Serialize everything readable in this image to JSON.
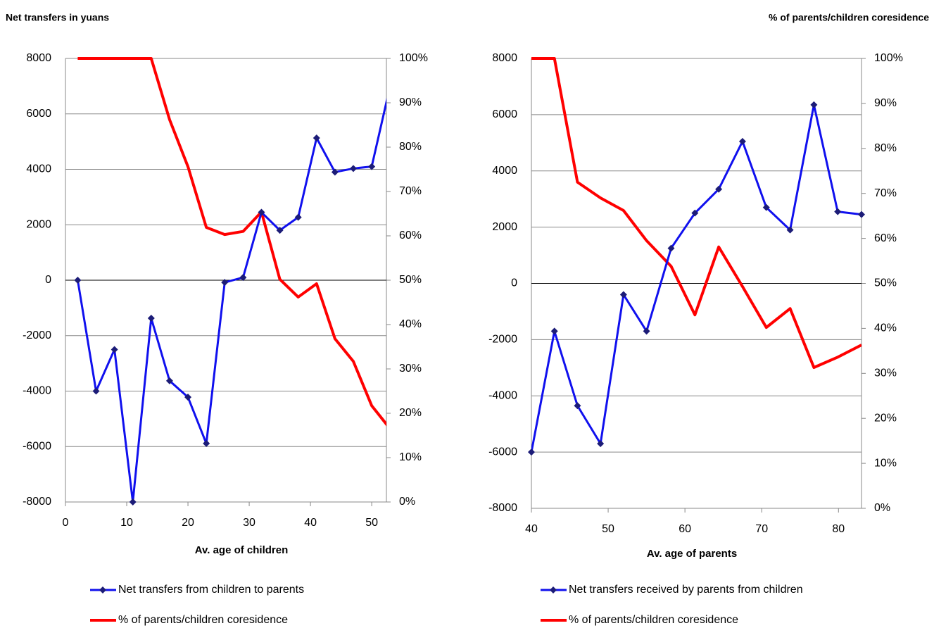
{
  "chart_data": [
    {
      "type": "line",
      "ylabel": "Net transfers in yuans",
      "xlabel": "Av. age of children",
      "x": [
        2,
        5,
        8,
        11,
        14,
        17,
        20,
        23,
        26,
        29,
        32,
        35,
        38,
        41,
        44,
        47,
        50,
        53
      ],
      "xlim": [
        0,
        52.4
      ],
      "xticks": [
        0,
        10,
        20,
        30,
        40,
        50
      ],
      "ylim": [
        -8000,
        8000
      ],
      "yticks": [
        -8000,
        -6000,
        -4000,
        -2000,
        0,
        2000,
        4000,
        6000,
        8000
      ],
      "y2lim": [
        0,
        100
      ],
      "y2ticks": [
        {
          "value": 0,
          "label": "0%"
        },
        {
          "value": 10,
          "label": "10%"
        },
        {
          "value": 20,
          "label": "20%"
        },
        {
          "value": 30,
          "label": "30%"
        },
        {
          "value": 40,
          "label": "40%"
        },
        {
          "value": 50,
          "label": "50%"
        },
        {
          "value": 60,
          "label": "60%"
        },
        {
          "value": 70,
          "label": "70%"
        },
        {
          "value": 80,
          "label": "80%"
        },
        {
          "value": 90,
          "label": "90%"
        },
        {
          "value": 100,
          "label": "100%"
        }
      ],
      "grid": true,
      "series": [
        {
          "name": "Net transfers from children to parents",
          "color": "#1010ee",
          "marker_color": "#1c1c78",
          "marker": "diamond",
          "values": [
            0,
            -4000,
            -2500,
            -8000,
            -1370,
            -3630,
            -4220,
            -5890,
            -80,
            100,
            2450,
            1800,
            2270,
            5130,
            3900,
            4030,
            4100,
            7000
          ]
        },
        {
          "name": "% of parents/children coresidence",
          "color": "#ff0000",
          "axis": "y2",
          "values": [
            100,
            100,
            100,
            100,
            100,
            86.2,
            75.6,
            61.9,
            60.3,
            61,
            65.4,
            50.2,
            46.2,
            49.2,
            36.8,
            31.7,
            21.7,
            16.5
          ]
        }
      ]
    },
    {
      "type": "line",
      "y2label": "% of parents/children coresidence",
      "xlabel": "Av. age of parents",
      "x": [
        40,
        43,
        46,
        49,
        52,
        55,
        58.2,
        61.3,
        64.4,
        67.5,
        70.6,
        73.7,
        76.8,
        79.9,
        83
      ],
      "xlim": [
        40,
        83
      ],
      "xticks": [
        40,
        50,
        60,
        70,
        80
      ],
      "ylim": [
        -8000,
        8000
      ],
      "yticks": [
        -8000,
        -6000,
        -4000,
        -2000,
        0,
        2000,
        4000,
        6000,
        8000
      ],
      "y2lim": [
        0,
        100
      ],
      "y2ticks": [
        {
          "value": 0,
          "label": "0%"
        },
        {
          "value": 10,
          "label": "10%"
        },
        {
          "value": 20,
          "label": "20%"
        },
        {
          "value": 30,
          "label": "30%"
        },
        {
          "value": 40,
          "label": "40%"
        },
        {
          "value": 50,
          "label": "50%"
        },
        {
          "value": 60,
          "label": "60%"
        },
        {
          "value": 70,
          "label": "70%"
        },
        {
          "value": 80,
          "label": "80%"
        },
        {
          "value": 90,
          "label": "90%"
        },
        {
          "value": 100,
          "label": "100%"
        }
      ],
      "grid": true,
      "series": [
        {
          "name": "Net transfers received by parents from children",
          "color": "#1010ee",
          "marker_color": "#1c1c78",
          "marker": "diamond",
          "values": [
            -6000,
            -1700,
            -4350,
            -5700,
            -400,
            -1700,
            1250,
            2500,
            3350,
            5050,
            2700,
            1900,
            6350,
            2550,
            2450
          ]
        },
        {
          "name": "% of parents/children coresidence",
          "color": "#ff0000",
          "axis": "y2",
          "values": [
            100,
            100,
            72.5,
            69,
            66.2,
            59.5,
            53.8,
            43,
            58.1,
            49.3,
            40.2,
            44.4,
            31.3,
            33.6,
            36.3
          ]
        }
      ]
    }
  ]
}
